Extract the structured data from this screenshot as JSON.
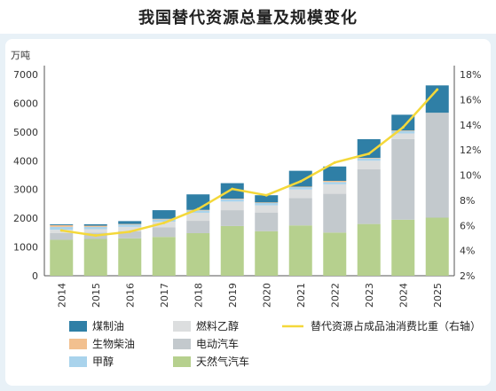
{
  "title": "我国替代资源总量及规模变化",
  "chart_data": {
    "type": "bar",
    "stacked": true,
    "categories": [
      "2014",
      "2015",
      "2016",
      "2017",
      "2018",
      "2019",
      "2020",
      "2021",
      "2022",
      "2023",
      "2024",
      "2025"
    ],
    "y_unit": "万吨",
    "ylim": [
      0,
      7000
    ],
    "yticks": [
      0,
      1000,
      2000,
      3000,
      4000,
      5000,
      6000,
      7000
    ],
    "y2lim": [
      2,
      18
    ],
    "y2ticks": [
      "2%",
      "4%",
      "6%",
      "8%",
      "10%",
      "12%",
      "14%",
      "16%",
      "18%"
    ],
    "y2_values": [
      2,
      4,
      6,
      8,
      10,
      12,
      14,
      16,
      18
    ],
    "grid": false,
    "legend_position": "bottom",
    "series": [
      {
        "name": "天然气汽车",
        "color": "#b6d08e",
        "values": [
          1250,
          1280,
          1300,
          1350,
          1480,
          1730,
          1550,
          1750,
          1500,
          1800,
          1950,
          2020
        ]
      },
      {
        "name": "电动汽车",
        "color": "#c3c9cd",
        "values": [
          230,
          220,
          250,
          330,
          430,
          550,
          650,
          950,
          1350,
          1900,
          2800,
          3650
        ]
      },
      {
        "name": "燃料乙醇",
        "color": "#dcdedf",
        "values": [
          120,
          120,
          150,
          200,
          280,
          300,
          250,
          300,
          330,
          300,
          200,
          0
        ]
      },
      {
        "name": "甲醇",
        "color": "#a9d3ec",
        "values": [
          100,
          80,
          80,
          80,
          80,
          80,
          80,
          80,
          80,
          80,
          80,
          0
        ]
      },
      {
        "name": "生物柴油",
        "color": "#f2c08f",
        "values": [
          60,
          40,
          20,
          20,
          20,
          20,
          20,
          20,
          40,
          20,
          20,
          0
        ]
      },
      {
        "name": "煤制油",
        "color": "#2f7fa6",
        "values": [
          30,
          50,
          100,
          300,
          540,
          540,
          250,
          550,
          500,
          650,
          550,
          950
        ]
      }
    ],
    "line_series": {
      "name": "替代资源占成品油消费比重（右轴）",
      "color": "#f4d83a",
      "values": [
        5.6,
        5.2,
        5.5,
        6.2,
        7.3,
        8.9,
        8.4,
        9.5,
        11.0,
        11.7,
        13.8,
        16.8
      ]
    }
  }
}
